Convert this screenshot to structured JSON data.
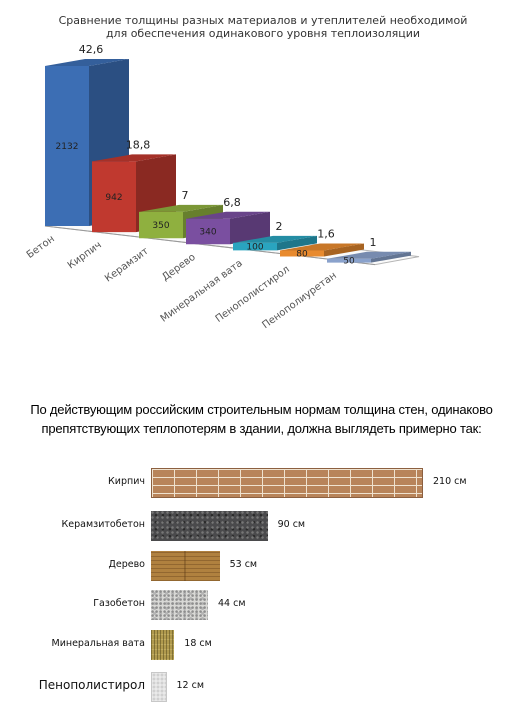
{
  "chart_data": [
    {
      "type": "bar",
      "title_lines": [
        "Сравнение толщины разных материалов и утеплителей необходимой",
        "для обеспечения одинакового уровня теплоизоляции"
      ],
      "categories": [
        "Бетон",
        "Кирпич",
        "Керамзит",
        "Дерево",
        "Минеральная вата",
        "Пенополистирол",
        "Пенополиуретан"
      ],
      "series": [
        {
          "values": [
            2132,
            942,
            350,
            340,
            100,
            80,
            50
          ],
          "labels": [
            "2132",
            "942",
            "350",
            "340",
            "100",
            "80",
            "50"
          ]
        },
        {
          "values": [
            42.6,
            18.8,
            7,
            6.8,
            2,
            1.6,
            1
          ],
          "labels": [
            "42,6",
            "18,8",
            "7",
            "6,8",
            "2",
            "1,6",
            "1"
          ]
        }
      ],
      "colors": [
        "#3c6eb4",
        "#c0392f",
        "#8fb03f",
        "#7a4fa0",
        "#2aa4bf",
        "#e88a2e",
        "#8aa2cc"
      ]
    },
    {
      "type": "bar",
      "orientation": "horizontal",
      "title_lines": [
        "По действующим российским строительным нормам толщина стен, одинаково",
        "препятствующих теплопотерям в здании, должна выглядеть примерно так:"
      ],
      "categories": [
        "Кирпич",
        "Керамзитобетон",
        "Дерево",
        "Газобетон",
        "Минеральная вата",
        "Пенополистирол"
      ],
      "values": [
        210,
        90,
        53,
        44,
        18,
        12
      ],
      "value_labels": [
        "210 см",
        "90 см",
        "53 см",
        "44 см",
        "18 см",
        "12 см"
      ],
      "unit": "см",
      "textures": [
        "brick",
        "keramzit",
        "wood",
        "gazo",
        "minvata",
        "penopl"
      ]
    }
  ]
}
